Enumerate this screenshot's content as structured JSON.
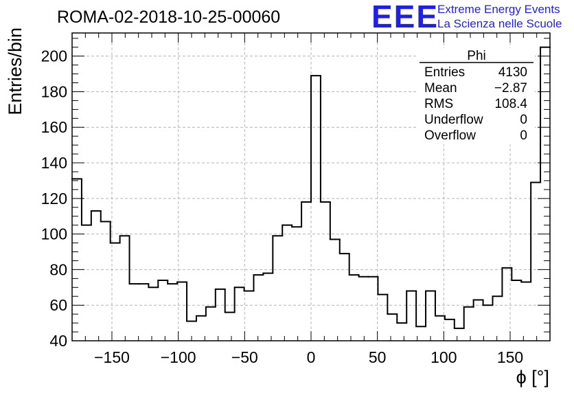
{
  "header": {
    "title": "ROMA-02-2018-10-25-00060",
    "logo_mark": "EEE",
    "logo_line1": "Extreme Energy Events",
    "logo_line2": "La Scienza nelle Scuole",
    "logo_color": "#1f1fe8"
  },
  "stats": {
    "name": "Phi",
    "rows": [
      {
        "label": "Entries",
        "value": "4130"
      },
      {
        "label": "Mean",
        "value": "−2.87"
      },
      {
        "label": "RMS",
        "value": "108.4"
      },
      {
        "label": "Underflow",
        "value": "0"
      },
      {
        "label": "Overflow",
        "value": "0"
      }
    ]
  },
  "chart_data": {
    "type": "bar",
    "style": "step-histogram",
    "xlabel": "ϕ [°]",
    "ylabel": "Entries/bin",
    "xlim": [
      -180,
      180
    ],
    "ylim": [
      40,
      213
    ],
    "bin_width": 7.2,
    "xticks": [
      -150,
      -100,
      -50,
      0,
      50,
      100,
      150
    ],
    "xtick_labels": [
      "−150",
      "−100",
      "−50",
      "0",
      "50",
      "100",
      "150"
    ],
    "yticks": [
      40,
      60,
      80,
      100,
      120,
      140,
      160,
      180,
      200
    ],
    "ytick_labels": [
      "40",
      "60",
      "80",
      "100",
      "120",
      "140",
      "160",
      "180",
      "200"
    ],
    "grid": true,
    "values": [
      131,
      105,
      113,
      107,
      95,
      99,
      72,
      72,
      70,
      74,
      72,
      73,
      51,
      54,
      59,
      69,
      56,
      70,
      68,
      77,
      78,
      99,
      105,
      104,
      118,
      189,
      118,
      97,
      89,
      77,
      76,
      76,
      66,
      55,
      50,
      68,
      48,
      68,
      54,
      52,
      47,
      59,
      63,
      60,
      65,
      81,
      74,
      73,
      129,
      205
    ]
  }
}
